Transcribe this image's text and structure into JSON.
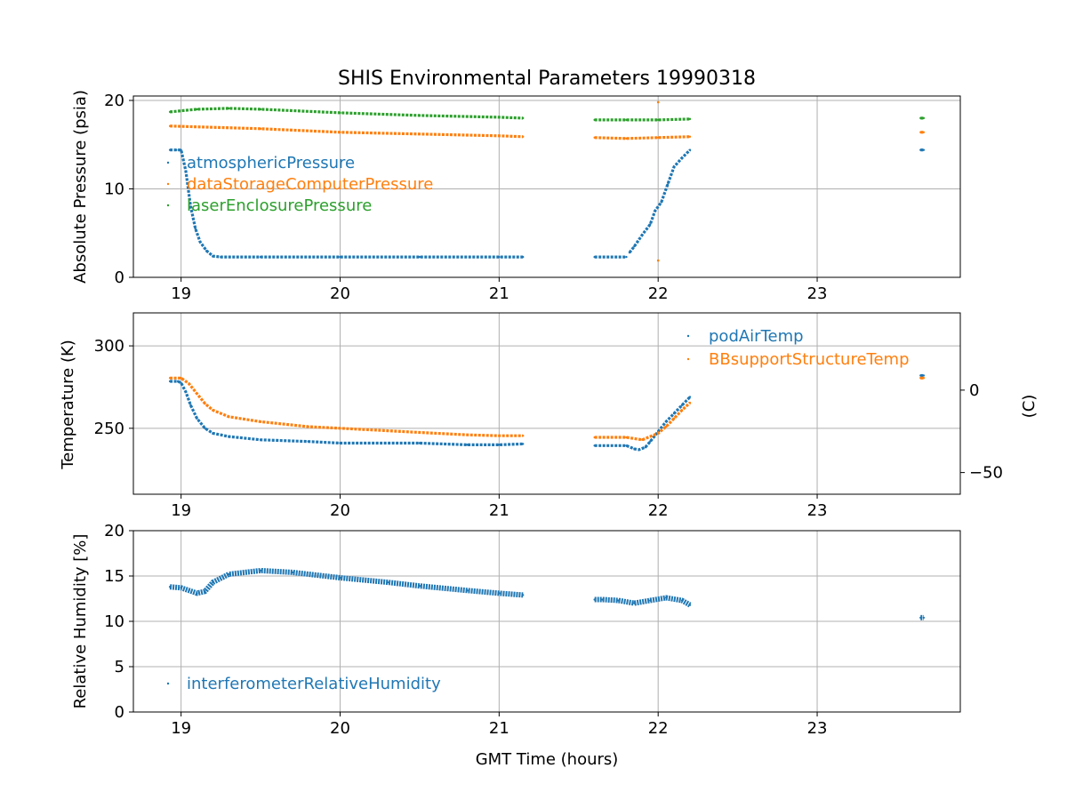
{
  "chart_data": [
    {
      "type": "scatter",
      "title": "SHIS Environmental Parameters 19990318",
      "xlabel": "",
      "ylabel": "Absolute Pressure (psia)",
      "xlim": [
        18.7,
        23.9
      ],
      "ylim": [
        0,
        20.5
      ],
      "xticks": [
        19,
        20,
        21,
        22,
        23
      ],
      "yticks": [
        0,
        10,
        20
      ],
      "grid": true,
      "legend": "upper-left",
      "series": [
        {
          "name": "atmosphericPressure",
          "color": "#1f77b4",
          "segments": [
            {
              "x": [
                18.93,
                18.97,
                19.0,
                19.03,
                19.06,
                19.09,
                19.12,
                19.16,
                19.2,
                19.25,
                19.5,
                20.0,
                20.5,
                21.0,
                21.15
              ],
              "y": [
                14.4,
                14.4,
                14.4,
                12.0,
                8.0,
                5.5,
                4.0,
                3.0,
                2.4,
                2.3,
                2.3,
                2.3,
                2.3,
                2.3,
                2.3
              ]
            },
            {
              "x": [
                21.6,
                21.8
              ],
              "y": [
                2.3,
                2.3
              ]
            },
            {
              "x": [
                21.82,
                21.85,
                21.9,
                21.95,
                21.98,
                22.02,
                22.06,
                22.1,
                22.15,
                22.2
              ],
              "y": [
                2.8,
                3.5,
                4.8,
                6.0,
                7.5,
                8.5,
                10.5,
                12.5,
                13.5,
                14.4
              ]
            },
            {
              "x": [
                23.65,
                23.67
              ],
              "y": [
                14.4,
                14.4
              ]
            }
          ]
        },
        {
          "name": "dataStorageComputerPressure",
          "color": "#ff7f0e",
          "segments": [
            {
              "x": [
                18.93,
                19.5,
                20.0,
                20.5,
                21.0,
                21.15
              ],
              "y": [
                17.1,
                16.8,
                16.4,
                16.2,
                16.0,
                15.9
              ]
            },
            {
              "x": [
                21.6,
                21.8,
                22.0,
                22.2
              ],
              "y": [
                15.8,
                15.7,
                15.8,
                15.9
              ]
            },
            {
              "x": [
                23.65,
                23.67
              ],
              "y": [
                16.4,
                16.4
              ]
            }
          ],
          "outliers": {
            "x": [
              22.0,
              22.0
            ],
            "y": [
              19.8,
              1.9
            ]
          }
        },
        {
          "name": "laserEnclosurePressure",
          "color": "#2ca02c",
          "segments": [
            {
              "x": [
                18.93,
                19.1,
                19.3,
                19.5,
                20.0,
                20.5,
                21.0,
                21.15
              ],
              "y": [
                18.7,
                19.0,
                19.1,
                19.0,
                18.6,
                18.3,
                18.1,
                18.0
              ]
            },
            {
              "x": [
                21.6,
                21.8,
                22.0,
                22.2
              ],
              "y": [
                17.8,
                17.8,
                17.8,
                17.9
              ]
            },
            {
              "x": [
                23.65,
                23.67
              ],
              "y": [
                18.0,
                18.0
              ]
            }
          ]
        }
      ],
      "legend_entries": [
        "atmosphericPressure",
        "dataStorageComputerPressure",
        "laserEnclosurePressure"
      ]
    },
    {
      "type": "scatter",
      "title": "",
      "xlabel": "",
      "ylabel": "Temperature (K)",
      "y2label": "(C)",
      "xlim": [
        18.7,
        23.9
      ],
      "ylim": [
        210,
        320
      ],
      "y2lim": [
        -63.15,
        46.85
      ],
      "xticks": [
        19,
        20,
        21,
        22,
        23
      ],
      "yticks": [
        250,
        300
      ],
      "y2ticks": [
        -50,
        0
      ],
      "grid": true,
      "legend": "upper-right",
      "series": [
        {
          "name": "podAirTemp",
          "color": "#1f77b4",
          "segments": [
            {
              "x": [
                18.93,
                18.98,
                19.0,
                19.03,
                19.06,
                19.1,
                19.15,
                19.2,
                19.3,
                19.5,
                19.8,
                20.0,
                20.5,
                20.8,
                21.0,
                21.15
              ],
              "y": [
                278.5,
                278.5,
                277.5,
                272.0,
                264.0,
                256.0,
                250.0,
                247.0,
                245.0,
                243.0,
                242.0,
                241.0,
                241.0,
                240.0,
                240.0,
                240.5
              ]
            },
            {
              "x": [
                21.6,
                21.8,
                21.85,
                21.88,
                21.92,
                21.95,
                22.0,
                22.05,
                22.1,
                22.15,
                22.2
              ],
              "y": [
                239.5,
                239.5,
                237.5,
                237.0,
                238.5,
                242.0,
                248.0,
                254.0,
                259.0,
                264.0,
                269.0
              ]
            },
            {
              "x": [
                23.65,
                23.67
              ],
              "y": [
                282.0,
                282.0
              ]
            }
          ]
        },
        {
          "name": "BBsupportStructureTemp",
          "color": "#ff7f0e",
          "segments": [
            {
              "x": [
                18.93,
                19.0,
                19.05,
                19.1,
                19.15,
                19.2,
                19.3,
                19.5,
                19.8,
                20.0,
                20.3,
                20.5,
                20.8,
                21.0,
                21.15
              ],
              "y": [
                280.5,
                280.5,
                277.0,
                271.0,
                265.0,
                261.0,
                257.0,
                254.0,
                251.0,
                250.0,
                248.5,
                247.5,
                246.0,
                245.5,
                245.5
              ]
            },
            {
              "x": [
                21.6,
                21.8,
                21.9,
                22.0,
                22.05,
                22.1,
                22.15,
                22.2
              ],
              "y": [
                244.5,
                244.5,
                243.0,
                247.0,
                251.0,
                256.0,
                261.0,
                265.5
              ]
            },
            {
              "x": [
                23.65,
                23.67
              ],
              "y": [
                280.5,
                280.5
              ]
            }
          ]
        }
      ],
      "legend_entries": [
        "podAirTemp",
        "BBsupportStructureTemp"
      ]
    },
    {
      "type": "scatter",
      "title": "",
      "xlabel": "GMT Time (hours)",
      "ylabel": "Relative Humidity [%]",
      "xlim": [
        18.7,
        23.9
      ],
      "ylim": [
        0,
        20
      ],
      "xticks": [
        19,
        20,
        21,
        22,
        23
      ],
      "yticks": [
        0,
        5,
        10,
        15,
        20
      ],
      "grid": true,
      "legend": "lower-left",
      "series": [
        {
          "name": "interferometerRelativeHumidity",
          "color": "#1f77b4",
          "segments": [
            {
              "x": [
                18.93,
                19.0,
                19.05,
                19.1,
                19.15,
                19.2,
                19.3,
                19.5,
                19.7,
                20.0,
                20.3,
                20.5,
                20.8,
                21.0,
                21.15
              ],
              "y": [
                13.8,
                13.7,
                13.4,
                13.1,
                13.3,
                14.3,
                15.2,
                15.6,
                15.4,
                14.8,
                14.3,
                13.9,
                13.4,
                13.1,
                12.9
              ]
            },
            {
              "x": [
                21.6,
                21.65,
                21.75,
                21.85,
                21.95,
                22.05,
                22.15,
                22.2
              ],
              "y": [
                12.4,
                12.4,
                12.3,
                12.0,
                12.3,
                12.6,
                12.3,
                11.8
              ]
            },
            {
              "x": [
                23.65,
                23.67
              ],
              "y": [
                10.4,
                10.4
              ]
            }
          ]
        }
      ],
      "legend_entries": [
        "interferometerRelativeHumidity"
      ]
    }
  ]
}
